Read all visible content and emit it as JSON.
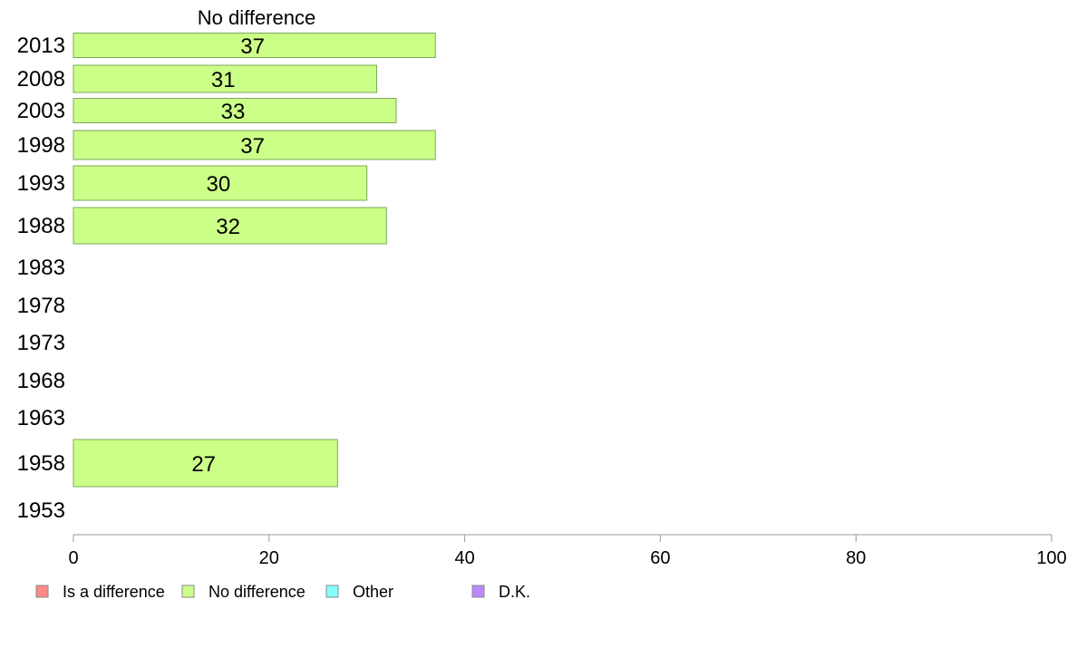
{
  "chart_data": {
    "type": "bar",
    "orientation": "horizontal",
    "title": "No difference",
    "categories": [
      "2013",
      "2008",
      "2003",
      "1998",
      "1993",
      "1988",
      "1983",
      "1978",
      "1973",
      "1968",
      "1963",
      "1958",
      "1953"
    ],
    "series": [
      {
        "name": "No difference",
        "color": "#ccff88",
        "values": [
          37,
          31,
          33,
          37,
          30,
          32,
          null,
          null,
          null,
          null,
          null,
          27,
          null
        ],
        "labels": [
          "37",
          "31",
          "33",
          "37",
          "30",
          "32",
          "",
          "",
          "",
          "",
          "",
          "27",
          ""
        ]
      }
    ],
    "xlim": [
      0,
      100
    ],
    "xticks": [
      "0",
      "20",
      "40",
      "60",
      "80",
      "100"
    ],
    "grid": false,
    "legend_position": "bottom",
    "legend": [
      {
        "label": "Is a difference",
        "color": "#ff8888"
      },
      {
        "label": "No difference",
        "color": "#ccff88"
      },
      {
        "label": "Other",
        "color": "#88ffff"
      },
      {
        "label": "D.K.",
        "color": "#bb88ff"
      }
    ]
  }
}
